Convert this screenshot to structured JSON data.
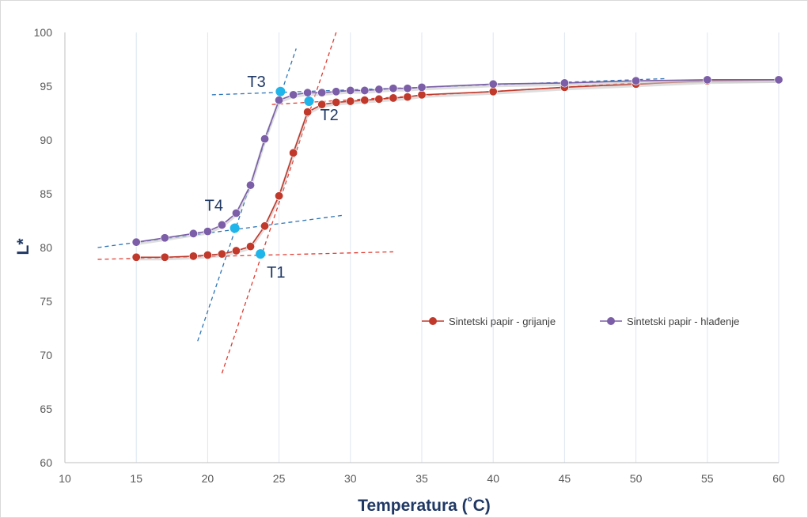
{
  "chart_data": {
    "type": "line",
    "title": "",
    "xlabel": "Temperatura (˚C)",
    "ylabel": "L*",
    "xlim": [
      10,
      60
    ],
    "ylim": [
      60,
      100
    ],
    "xticks": [
      10,
      15,
      20,
      25,
      30,
      35,
      40,
      45,
      50,
      55,
      60
    ],
    "yticks": [
      60,
      65,
      70,
      75,
      80,
      85,
      90,
      95,
      100
    ],
    "grid": "vertical",
    "legend_position": "right",
    "series": [
      {
        "name": "Sintetski papir - grijanje",
        "color": "#c0392b",
        "x": [
          15,
          17,
          19,
          20,
          21,
          22,
          23,
          24,
          25,
          26,
          27,
          28,
          29,
          30,
          31,
          32,
          33,
          34,
          35,
          40,
          45,
          50,
          55,
          60
        ],
        "y": [
          79.1,
          79.1,
          79.2,
          79.3,
          79.4,
          79.7,
          80.1,
          82.0,
          84.8,
          88.8,
          92.6,
          93.3,
          93.5,
          93.6,
          93.7,
          93.8,
          93.9,
          94.0,
          94.2,
          94.5,
          94.9,
          95.2,
          95.5,
          95.6
        ]
      },
      {
        "name": "Sintetski papir - hlađenje",
        "color": "#7b5ea7",
        "x": [
          15,
          17,
          19,
          20,
          21,
          22,
          23,
          24,
          25,
          26,
          27,
          28,
          29,
          30,
          31,
          32,
          33,
          34,
          35,
          40,
          45,
          50,
          55,
          60
        ],
        "y": [
          80.5,
          80.9,
          81.3,
          81.5,
          82.1,
          83.2,
          85.8,
          90.1,
          93.7,
          94.2,
          94.4,
          94.4,
          94.5,
          94.6,
          94.6,
          94.7,
          94.8,
          94.8,
          94.9,
          95.2,
          95.3,
          95.5,
          95.6,
          95.6
        ]
      }
    ],
    "tangent_lines": [
      {
        "color": "#e03c31",
        "x": [
          12.3,
          33.0
        ],
        "y": [
          78.9,
          79.6
        ]
      },
      {
        "color": "#e03c31",
        "x": [
          21.0,
          29.0
        ],
        "y": [
          68.3,
          100.0
        ]
      },
      {
        "color": "#e03c31",
        "x": [
          24.5,
          50.0
        ],
        "y": [
          93.3,
          95.3
        ]
      },
      {
        "color": "#2e75b6",
        "x": [
          12.3,
          29.5
        ],
        "y": [
          80.0,
          83.0
        ]
      },
      {
        "color": "#2e75b6",
        "x": [
          19.3,
          26.2
        ],
        "y": [
          71.3,
          98.5
        ]
      },
      {
        "color": "#2e75b6",
        "x": [
          20.3,
          52.0
        ],
        "y": [
          94.2,
          95.7
        ]
      }
    ],
    "annotations": [
      {
        "label": "T1",
        "x": 23.7,
        "y": 79.4
      },
      {
        "label": "T2",
        "x": 27.1,
        "y": 93.6
      },
      {
        "label": "T3",
        "x": 25.1,
        "y": 94.5
      },
      {
        "label": "T4",
        "x": 21.9,
        "y": 81.8
      }
    ],
    "annotation_color": "#1fb5ea"
  }
}
